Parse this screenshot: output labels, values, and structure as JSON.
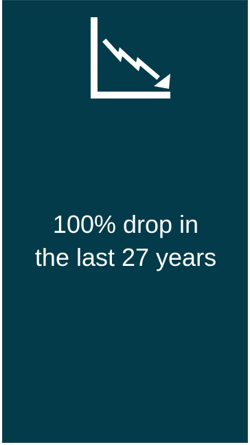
{
  "card": {
    "background": "#033b4a",
    "icon": "declining-chart-icon",
    "stat_line1": "100% drop in",
    "stat_line2": "the last 27 years"
  }
}
